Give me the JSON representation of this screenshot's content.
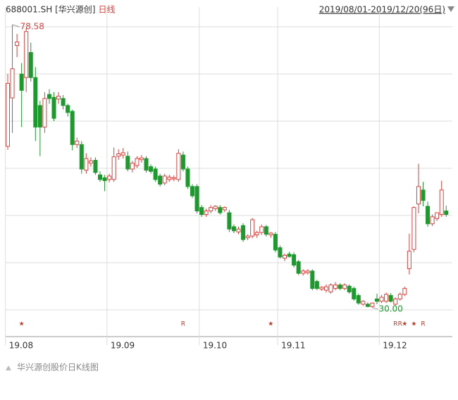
{
  "chart_data": {
    "type": "candlestick",
    "symbol": "688001.SH [华兴源创]",
    "period": "日线",
    "range_label": "2019/08/01-2019/12/20(96日)",
    "caption": "华兴源创股价日K线图",
    "up_color": "#e0403c",
    "down_color": "#1d9a2d",
    "ylim": [
      25.4,
      81.6
    ],
    "xticks": [
      {
        "value": 0,
        "label": "19.08"
      },
      {
        "value": 22,
        "label": "19.09"
      },
      {
        "value": 42,
        "label": "19.10"
      },
      {
        "value": 59,
        "label": "19.11"
      },
      {
        "value": 81,
        "label": "19.12"
      }
    ],
    "open": [
      57.7,
      66.0,
      75.0,
      70.1,
      69.5,
      73.8,
      69.5,
      64.7,
      61.0,
      66.6,
      66.1,
      65.8,
      65.9,
      64.7,
      63.7,
      58.0,
      58.0,
      53.6,
      54.8,
      55.3,
      52.8,
      52.3,
      52.0,
      52.0,
      56.0,
      56.2,
      56.0,
      53.8,
      54.4,
      55.4,
      55.6,
      54.2,
      53.8,
      52.6,
      51.4,
      52.0,
      52.1,
      52.0,
      56.2,
      53.8,
      50.8,
      50.8,
      47.2,
      46.0,
      46.6,
      47.0,
      47.2,
      46.8,
      46.3,
      43.9,
      43.0,
      44.1,
      42.0,
      42.3,
      42.5,
      42.9,
      43.9,
      42.5,
      42.6,
      40.3,
      38.5,
      39.2,
      39.1,
      37.9,
      35.9,
      36.0,
      36.3,
      34.5,
      33.2,
      33.0,
      32.7,
      33.3,
      33.9,
      33.3,
      33.7,
      33.3,
      32.1,
      30.6,
      30.6,
      30.2,
      31.5,
      31.1,
      31.1,
      32.1,
      30.6,
      31.5,
      32.3,
      36.7,
      40.0,
      47.8,
      50.2,
      47.4,
      44.4,
      45.3,
      46.0,
      46.6
    ],
    "high": [
      70.1,
      78.58,
      77.0,
      72.0,
      78.0,
      75.5,
      71.3,
      65.5,
      67.0,
      67.5,
      67.0,
      67.0,
      66.5,
      65.0,
      64.0,
      59.2,
      58.6,
      56.5,
      55.8,
      55.8,
      53.4,
      52.8,
      53.0,
      57.5,
      57.2,
      57.4,
      56.8,
      55.2,
      56.0,
      56.2,
      56.0,
      54.6,
      54.2,
      53.0,
      53.0,
      52.8,
      52.7,
      57.2,
      56.8,
      54.2,
      51.2,
      51.2,
      47.6,
      47.0,
      47.6,
      47.6,
      47.6,
      47.4,
      46.8,
      44.3,
      43.9,
      44.5,
      42.6,
      45.4,
      43.2,
      44.3,
      44.2,
      43.0,
      43.0,
      40.7,
      39.3,
      39.6,
      39.5,
      38.2,
      36.6,
      36.6,
      36.6,
      34.8,
      33.7,
      34.0,
      34.2,
      34.4,
      34.2,
      34.2,
      34.0,
      33.6,
      32.4,
      31.3,
      30.9,
      30.9,
      32.4,
      32.2,
      32.6,
      32.5,
      31.8,
      32.6,
      33.6,
      42.7,
      47.4,
      54.7,
      51.6,
      48.2,
      46.0,
      46.2,
      51.8,
      47.5
    ],
    "low": [
      57.1,
      60.0,
      73.0,
      61.0,
      67.0,
      68.8,
      58.6,
      56.0,
      60.0,
      65.0,
      62.0,
      65.0,
      64.0,
      62.8,
      57.0,
      57.4,
      53.0,
      53.0,
      54.2,
      52.8,
      51.6,
      50.0,
      51.5,
      51.6,
      55.4,
      55.6,
      53.4,
      53.2,
      54.0,
      54.9,
      53.2,
      53.0,
      51.6,
      50.8,
      51.0,
      51.6,
      51.7,
      51.6,
      53.4,
      50.4,
      48.8,
      46.2,
      45.6,
      45.6,
      46.2,
      46.6,
      46.0,
      46.4,
      43.0,
      42.8,
      42.6,
      41.3,
      41.6,
      41.9,
      42.0,
      42.5,
      42.2,
      42.0,
      39.5,
      38.4,
      38.0,
      38.6,
      36.9,
      35.6,
      35.5,
      35.7,
      33.0,
      33.0,
      32.9,
      32.6,
      32.4,
      33.0,
      33.0,
      33.0,
      32.4,
      31.2,
      30.5,
      30.3,
      30.1,
      30.0,
      30.6,
      30.8,
      30.8,
      30.9,
      30.4,
      31.2,
      32.0,
      35.7,
      39.5,
      46.2,
      47.4,
      43.9,
      44.0,
      44.9,
      45.6,
      45.6
    ],
    "close": [
      68.5,
      71.0,
      75.6,
      67.3,
      77.4,
      69.5,
      61.0,
      61.0,
      65.9,
      65.9,
      62.5,
      66.3,
      64.7,
      63.5,
      58.0,
      58.6,
      53.8,
      55.6,
      55.2,
      53.2,
      52.0,
      51.8,
      52.6,
      55.9,
      56.4,
      56.6,
      53.8,
      54.8,
      55.6,
      55.7,
      53.6,
      53.4,
      52.0,
      51.2,
      52.6,
      52.4,
      52.3,
      56.5,
      53.8,
      50.8,
      49.2,
      46.6,
      46.0,
      46.6,
      47.2,
      47.4,
      46.3,
      47.2,
      43.5,
      43.2,
      43.5,
      41.7,
      42.3,
      45.1,
      42.9,
      43.9,
      42.6,
      42.8,
      39.9,
      38.7,
      39.0,
      38.8,
      37.3,
      35.9,
      36.3,
      36.3,
      33.3,
      33.3,
      33.5,
      33.6,
      33.9,
      33.9,
      33.3,
      33.9,
      32.7,
      31.5,
      30.8,
      31.1,
      30.2,
      30.8,
      31.1,
      31.8,
      32.3,
      31.1,
      31.5,
      32.3,
      33.3,
      39.7,
      47.2,
      50.8,
      48.4,
      44.4,
      45.6,
      46.3,
      50.2,
      46.0
    ],
    "annotations": [
      {
        "index": 1,
        "label": "78.58"
      },
      {
        "index": 79,
        "label": "30.00"
      }
    ],
    "markers": [
      {
        "index": 3,
        "label": "★"
      },
      {
        "index": 38,
        "label": "R"
      },
      {
        "index": 57,
        "label": "★"
      },
      {
        "index": 84,
        "label": "R"
      },
      {
        "index": 85,
        "label": "R"
      },
      {
        "index": 86,
        "label": "★"
      },
      {
        "index": 88,
        "label": "★"
      },
      {
        "index": 90,
        "label": "R"
      }
    ]
  }
}
